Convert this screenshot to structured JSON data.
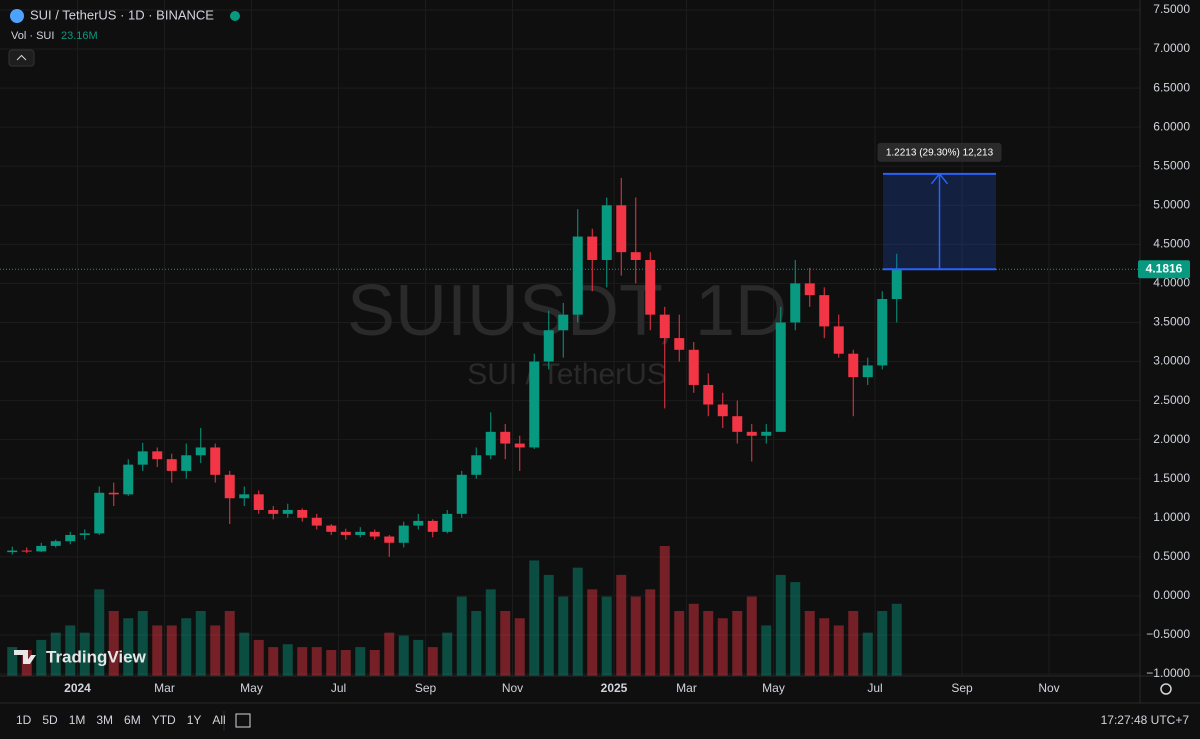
{
  "chart_data": {
    "type": "candlestick",
    "title": "SUI / TetherUS · 1D · BINANCE",
    "volume_name": "Vol · SUI",
    "volume_label": "23.16M",
    "watermark": "SUIUSDT, 1D",
    "watermark_subtitle": "SUI / TetherUS",
    "up_color": "#089981",
    "down_color": "#f23645",
    "grid": true,
    "categories": [
      null,
      null,
      null,
      null,
      null,
      "2024",
      null,
      null,
      null,
      null,
      null,
      "Mar",
      null,
      null,
      null,
      null,
      null,
      "May",
      null,
      null,
      null,
      null,
      null,
      "Jul",
      null,
      null,
      null,
      null,
      null,
      "Sep",
      null,
      null,
      null,
      null,
      null,
      "Nov",
      null,
      null,
      null,
      null,
      null,
      null,
      "2025",
      null,
      null,
      null,
      null,
      "Mar",
      null,
      null,
      null,
      null,
      null,
      "May",
      null,
      null,
      null,
      null,
      null,
      null,
      "Jul",
      null,
      null,
      null,
      null,
      null,
      "Sep",
      null,
      null,
      null,
      null,
      null,
      "Nov"
    ],
    "open": [
      0.56,
      0.58,
      0.57,
      0.64,
      0.7,
      0.78,
      0.8,
      1.32,
      1.3,
      1.68,
      1.85,
      1.75,
      1.6,
      1.8,
      1.9,
      1.55,
      1.25,
      1.3,
      1.1,
      1.05,
      1.1,
      1.0,
      0.9,
      0.82,
      0.78,
      0.82,
      0.76,
      0.68,
      0.9,
      0.96,
      0.82,
      1.05,
      1.55,
      1.8,
      2.1,
      1.95,
      1.9,
      3.0,
      3.4,
      3.6,
      4.6,
      4.3,
      5.0,
      4.4,
      4.3,
      3.6,
      3.3,
      3.15,
      2.7,
      2.45,
      2.3,
      2.1,
      2.05,
      2.1,
      3.5,
      4.0,
      3.85,
      3.45,
      3.1,
      2.8,
      2.95,
      3.8,
      null,
      null,
      null,
      null,
      null,
      null,
      null,
      null,
      null,
      null,
      null
    ],
    "high": [
      0.63,
      0.62,
      0.68,
      0.72,
      0.82,
      0.85,
      1.4,
      1.45,
      1.75,
      1.96,
      1.9,
      1.82,
      1.95,
      2.15,
      1.95,
      1.6,
      1.4,
      1.35,
      1.15,
      1.18,
      1.12,
      1.05,
      0.92,
      0.86,
      0.88,
      0.85,
      0.78,
      0.95,
      1.05,
      0.98,
      1.1,
      1.6,
      1.9,
      2.35,
      2.2,
      2.05,
      3.1,
      3.65,
      3.75,
      4.95,
      4.7,
      5.1,
      5.35,
      5.1,
      4.4,
      3.7,
      3.6,
      3.25,
      2.85,
      2.6,
      2.5,
      2.2,
      2.2,
      3.7,
      4.3,
      4.2,
      3.95,
      3.6,
      3.15,
      3.05,
      3.9,
      4.38,
      null,
      null,
      null,
      null,
      null,
      null,
      null,
      null,
      null,
      null,
      null
    ],
    "low": [
      0.53,
      0.55,
      0.56,
      0.62,
      0.66,
      0.72,
      0.78,
      1.15,
      1.28,
      1.6,
      1.65,
      1.45,
      1.5,
      1.7,
      1.45,
      0.92,
      1.15,
      1.05,
      0.98,
      1.0,
      0.95,
      0.85,
      0.78,
      0.72,
      0.75,
      0.72,
      0.5,
      0.62,
      0.85,
      0.75,
      0.8,
      1.0,
      1.5,
      1.75,
      1.75,
      1.6,
      1.88,
      2.9,
      3.05,
      3.5,
      3.9,
      3.95,
      4.1,
      4.0,
      3.4,
      2.4,
      3.0,
      2.6,
      2.3,
      2.15,
      1.95,
      1.72,
      1.95,
      2.1,
      3.4,
      3.7,
      3.3,
      3.05,
      2.3,
      2.7,
      2.9,
      3.5,
      null,
      null,
      null,
      null,
      null,
      null,
      null,
      null,
      null,
      null,
      null
    ],
    "close": [
      0.58,
      0.57,
      0.64,
      0.7,
      0.78,
      0.8,
      1.32,
      1.3,
      1.68,
      1.85,
      1.75,
      1.6,
      1.8,
      1.9,
      1.55,
      1.25,
      1.3,
      1.1,
      1.05,
      1.1,
      1.0,
      0.9,
      0.82,
      0.78,
      0.82,
      0.76,
      0.68,
      0.9,
      0.96,
      0.82,
      1.05,
      1.55,
      1.8,
      2.1,
      1.95,
      1.9,
      3.0,
      3.4,
      3.6,
      4.6,
      4.3,
      5.0,
      4.4,
      4.3,
      3.6,
      3.3,
      3.15,
      2.7,
      2.45,
      2.3,
      2.1,
      2.05,
      2.1,
      3.5,
      4.0,
      3.85,
      3.45,
      3.1,
      2.8,
      2.95,
      3.8,
      4.1816,
      null,
      null,
      null,
      null,
      null,
      null,
      null,
      null,
      null,
      null,
      null
    ],
    "volume": [
      20,
      18,
      25,
      30,
      35,
      30,
      60,
      45,
      40,
      45,
      35,
      35,
      40,
      45,
      35,
      45,
      30,
      25,
      20,
      22,
      20,
      20,
      18,
      18,
      20,
      18,
      30,
      28,
      25,
      20,
      30,
      55,
      45,
      60,
      45,
      40,
      80,
      70,
      55,
      75,
      60,
      55,
      70,
      55,
      60,
      90,
      45,
      50,
      45,
      40,
      45,
      55,
      35,
      70,
      65,
      45,
      40,
      35,
      45,
      30,
      45,
      50,
      null,
      null,
      null,
      null,
      null,
      null,
      null,
      null,
      null,
      null,
      null
    ],
    "last_price": 4.1816,
    "measure": {
      "label": "1.2213 (29.30%) 12,213",
      "from": 4.1816,
      "to": 5.4029
    },
    "ylim": [
      -1.0,
      7.5
    ],
    "yticks": [
      {
        "value": 7.5,
        "label": "7.5000"
      },
      {
        "value": 7.0,
        "label": "7.0000"
      },
      {
        "value": 6.5,
        "label": "6.5000"
      },
      {
        "value": 6.0,
        "label": "6.0000"
      },
      {
        "value": 5.5,
        "label": "5.5000"
      },
      {
        "value": 5.0,
        "label": "5.0000"
      },
      {
        "value": 4.5,
        "label": "4.5000"
      },
      {
        "value": 4.0,
        "label": "4.0000"
      },
      {
        "value": 3.5,
        "label": "3.5000"
      },
      {
        "value": 3.0,
        "label": "3.0000"
      },
      {
        "value": 2.5,
        "label": "2.5000"
      },
      {
        "value": 2.0,
        "label": "2.0000"
      },
      {
        "value": 1.5,
        "label": "1.5000"
      },
      {
        "value": 1.0,
        "label": "1.0000"
      },
      {
        "value": 0.5,
        "label": "0.5000"
      },
      {
        "value": 0.0,
        "label": "0.0000"
      },
      {
        "value": -0.5,
        "label": "−0.5000"
      },
      {
        "value": -1.0,
        "label": "−1.0000"
      }
    ]
  },
  "ui": {
    "brand": "TradingView",
    "timeframes": [
      "1D",
      "5D",
      "1M",
      "3M",
      "6M",
      "YTD",
      "1Y",
      "All"
    ],
    "clock": "17:27:48 UTC+7"
  }
}
